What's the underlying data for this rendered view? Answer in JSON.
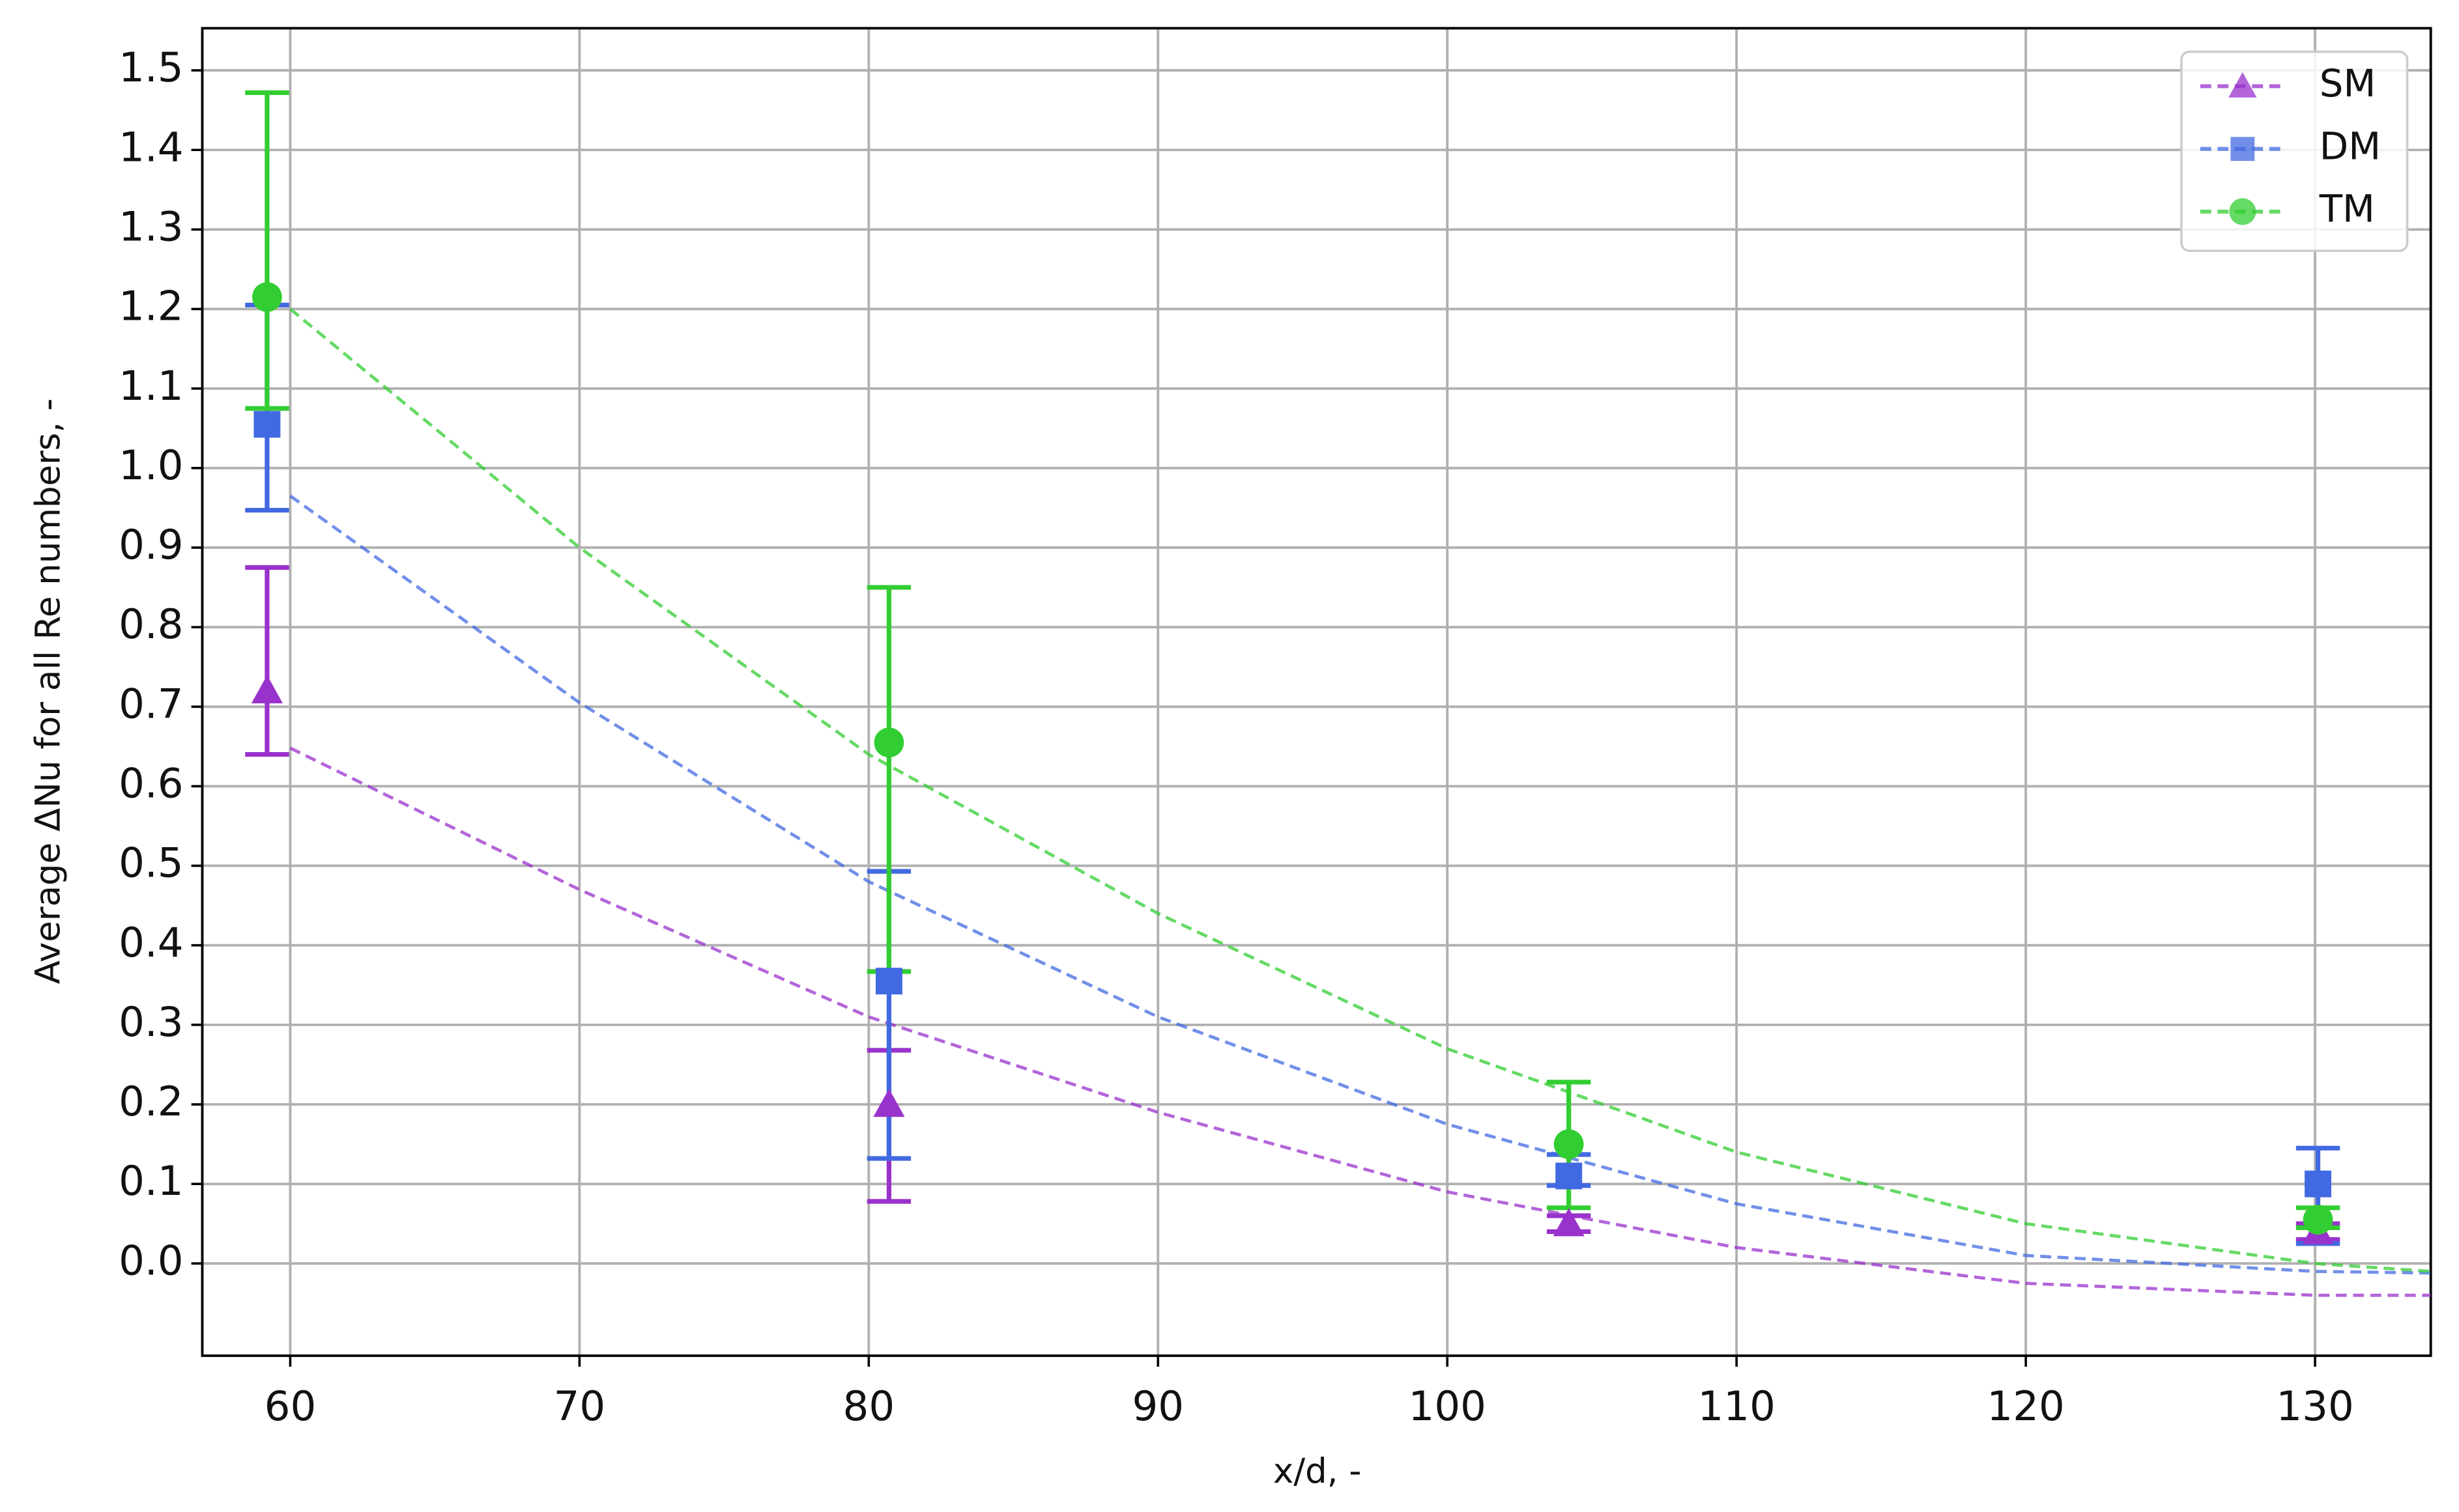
{
  "chart_data": {
    "type": "scatter",
    "xlabel": "x/d, -",
    "ylabel": "Average ΔNu for all Re numbers, -",
    "xlim": [
      56.96,
      134.0
    ],
    "ylim": [
      -0.116,
      1.553
    ],
    "xticks": [
      60,
      70,
      80,
      90,
      100,
      110,
      120,
      130
    ],
    "yticks": [
      {
        "value": 0,
        "label": "0.0"
      },
      0.1,
      0.2,
      0.3,
      0.4,
      0.5,
      0.6,
      0.7,
      0.8,
      0.9,
      {
        "value": 1,
        "label": "1.0"
      },
      1.1,
      1.2,
      1.3,
      1.4,
      1.5
    ],
    "grid": true,
    "legend": "upper right",
    "x": [
      59.2,
      80.7,
      104.2,
      130.1
    ],
    "fit_x": [
      60,
      70,
      80,
      90,
      100,
      110,
      120,
      130,
      134
    ],
    "series": [
      {
        "name": "SM",
        "color": "#9932cc",
        "marker": "triangle",
        "values": [
          0.72,
          0.2,
          0.05,
          0.04
        ],
        "err_minus": [
          0.08,
          0.122,
          0.01,
          0.01
        ],
        "err_plus": [
          0.155,
          0.068,
          0.01,
          0.01
        ],
        "fit": [
          0.648,
          0.47,
          0.31,
          0.19,
          0.09,
          0.02,
          -0.025,
          -0.04,
          -0.04
        ]
      },
      {
        "name": "DM",
        "color": "#4169e1",
        "marker": "square",
        "values": [
          1.055,
          0.355,
          0.11,
          0.1
        ],
        "err_minus": [
          0.108,
          0.223,
          0.012,
          0.075
        ],
        "err_plus": [
          0.15,
          0.138,
          0.027,
          0.045
        ],
        "fit": [
          0.965,
          0.705,
          0.48,
          0.31,
          0.175,
          0.075,
          0.01,
          -0.01,
          -0.012
        ]
      },
      {
        "name": "TM",
        "color": "#32cd32",
        "marker": "circle",
        "values": [
          1.215,
          0.655,
          0.15,
          0.055
        ],
        "err_minus": [
          0.14,
          0.288,
          0.08,
          0.01
        ],
        "err_plus": [
          0.257,
          0.195,
          0.078,
          0.015
        ],
        "fit": [
          1.2,
          0.9,
          0.64,
          0.44,
          0.27,
          0.14,
          0.05,
          0.0,
          -0.01
        ]
      }
    ]
  }
}
